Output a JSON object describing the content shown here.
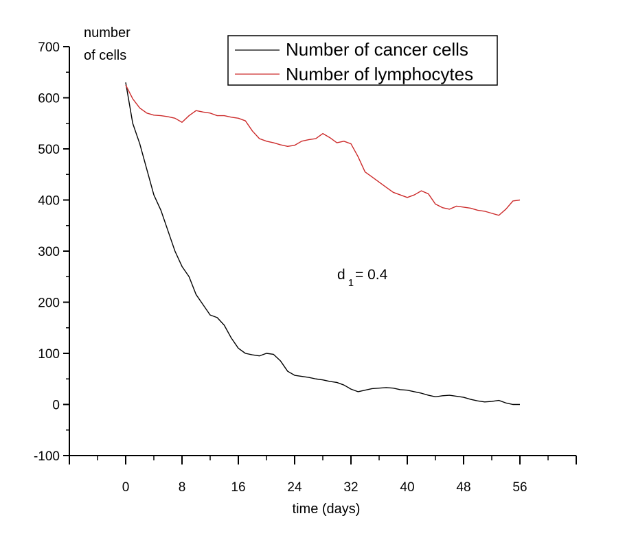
{
  "chart_data": {
    "type": "line",
    "title": "",
    "xlabel": "time (days)",
    "ylabel_line1": "number",
    "ylabel_line2": "of cells",
    "xlim": [
      -8,
      64
    ],
    "ylim": [
      -100,
      700
    ],
    "x_ticks": [
      0,
      8,
      16,
      24,
      32,
      40,
      48,
      56
    ],
    "x_tick_labels": [
      "0",
      "8",
      "16",
      "24",
      "32",
      "40",
      "48",
      "56"
    ],
    "y_ticks": [
      -100,
      0,
      100,
      200,
      300,
      400,
      500,
      600,
      700
    ],
    "y_tick_labels": [
      "-100",
      "0",
      "100",
      "200",
      "300",
      "400",
      "500",
      "600",
      "700"
    ],
    "legend_position": "top-right",
    "annotation": {
      "main": "d",
      "subscript": "1",
      "rest": "= 0.4",
      "x": 32,
      "y": 245
    },
    "series": [
      {
        "name": "Number of cancer cells",
        "color": "#000000",
        "x": [
          0,
          1,
          2,
          3,
          4,
          5,
          6,
          7,
          8,
          9,
          10,
          11,
          12,
          13,
          14,
          15,
          16,
          17,
          18,
          19,
          20,
          21,
          22,
          23,
          24,
          25,
          26,
          27,
          28,
          29,
          30,
          31,
          32,
          33,
          34,
          35,
          36,
          37,
          38,
          39,
          40,
          41,
          42,
          43,
          44,
          45,
          46,
          47,
          48,
          49,
          50,
          51,
          52,
          53,
          54,
          55,
          56
        ],
        "values": [
          630,
          550,
          510,
          460,
          410,
          380,
          340,
          300,
          270,
          250,
          215,
          195,
          175,
          170,
          155,
          130,
          110,
          100,
          97,
          95,
          100,
          98,
          85,
          65,
          57,
          55,
          53,
          50,
          48,
          45,
          43,
          38,
          30,
          25,
          28,
          31,
          32,
          33,
          32,
          29,
          28,
          25,
          22,
          18,
          15,
          17,
          18,
          16,
          14,
          10,
          7,
          5,
          6,
          8,
          3,
          0,
          0
        ]
      },
      {
        "name": "Number of lymphocytes",
        "color": "#cc2a2a",
        "x": [
          0,
          1,
          2,
          3,
          4,
          5,
          6,
          7,
          8,
          9,
          10,
          11,
          12,
          13,
          14,
          15,
          16,
          17,
          18,
          19,
          20,
          21,
          22,
          23,
          24,
          25,
          26,
          27,
          28,
          29,
          30,
          31,
          32,
          33,
          34,
          35,
          36,
          37,
          38,
          39,
          40,
          41,
          42,
          43,
          44,
          45,
          46,
          47,
          48,
          49,
          50,
          51,
          52,
          53,
          54,
          55,
          56
        ],
        "values": [
          625,
          598,
          580,
          570,
          566,
          565,
          563,
          560,
          552,
          565,
          575,
          572,
          570,
          565,
          565,
          562,
          560,
          555,
          535,
          520,
          515,
          512,
          508,
          505,
          507,
          515,
          518,
          520,
          530,
          522,
          512,
          515,
          510,
          485,
          455,
          445,
          435,
          425,
          415,
          410,
          405,
          410,
          418,
          412,
          392,
          385,
          382,
          388,
          386,
          384,
          380,
          378,
          374,
          370,
          382,
          398,
          400
        ]
      }
    ]
  }
}
